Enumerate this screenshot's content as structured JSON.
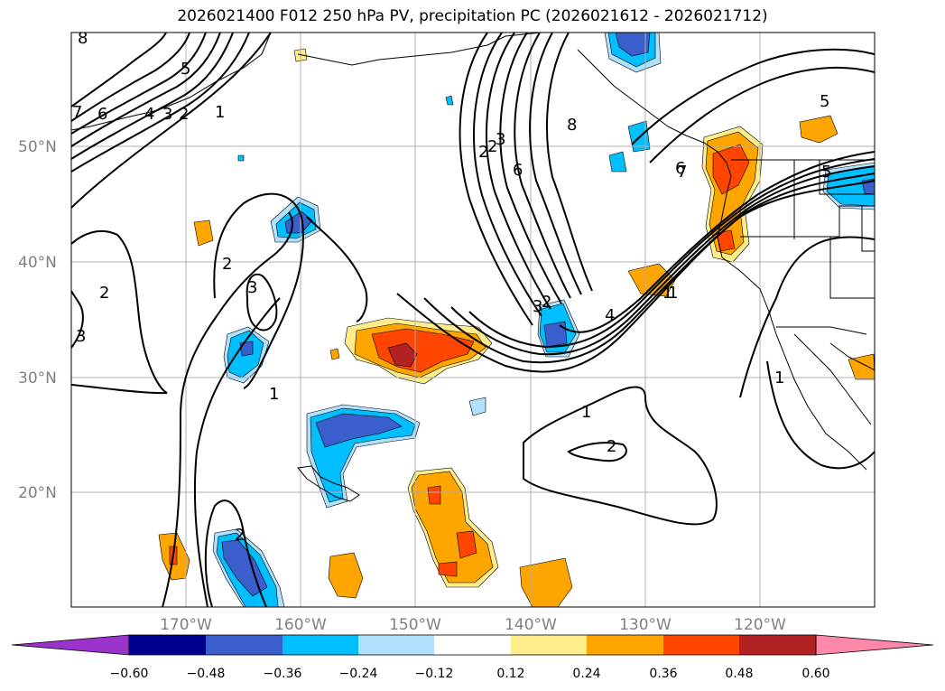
{
  "title": "2026021400 F012 250 hPa PV, precipitation PC (2026021612 - 2026021712)",
  "lat_labels": [
    "50°N",
    "40°N",
    "30°N",
    "20°N"
  ],
  "lon_labels": [
    "170°W",
    "160°W",
    "150°W",
    "140°W",
    "130°W",
    "120°W"
  ],
  "contour_labels": [
    "8",
    "6",
    "5",
    "4",
    "3",
    "2",
    "1",
    "7",
    "6",
    "5",
    "2",
    "3",
    "3",
    "2",
    "3",
    "1",
    "2",
    "2",
    "3",
    "6",
    "8",
    "2",
    "1",
    "4",
    "1",
    "7",
    "5",
    "1",
    "2",
    "1",
    "2"
  ],
  "colorbar": {
    "ticks": [
      "−0.60",
      "−0.48",
      "−0.36",
      "−0.24",
      "−0.12",
      "0.12",
      "0.24",
      "0.36",
      "0.48",
      "0.60"
    ],
    "colors": [
      "#9933cc",
      "#000090",
      "#3a5fcd",
      "#00bfff",
      "#b0e2ff",
      "#ffffff",
      "#ffec8b",
      "#ffa500",
      "#ff4500",
      "#b22222",
      "#ff88aa"
    ]
  }
}
